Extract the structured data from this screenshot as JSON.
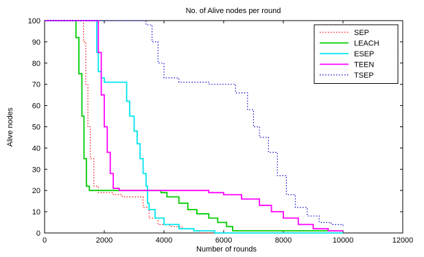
{
  "chart_data": {
    "type": "line",
    "title": "No. of Alive nodes per round",
    "xlabel": "Number of rounds",
    "ylabel": "Alive nodes",
    "xlim": [
      0,
      12000
    ],
    "ylim": [
      0,
      100
    ],
    "xticks": [
      0,
      2000,
      4000,
      6000,
      8000,
      10000,
      12000
    ],
    "yticks": [
      0,
      10,
      20,
      30,
      40,
      50,
      60,
      70,
      80,
      90,
      100
    ],
    "grid": false,
    "legend_position": "top-right",
    "series": [
      {
        "name": "SEP",
        "color": "#ff0000",
        "style": "dotted",
        "x": [
          0,
          1200,
          1300,
          1380,
          1450,
          1530,
          1650,
          1800,
          2000,
          2300,
          2600,
          3000,
          3300,
          3500,
          3800,
          4200,
          4600,
          5000,
          5200,
          5600,
          6000,
          8000,
          10000
        ],
        "y": [
          100,
          100,
          90,
          70,
          50,
          35,
          22,
          19,
          19,
          18,
          17,
          17,
          12,
          7,
          4,
          3,
          2,
          1,
          0,
          0,
          0,
          0,
          0
        ]
      },
      {
        "name": "LEACH",
        "color": "#00cc00",
        "style": "solid",
        "x": [
          0,
          1000,
          1050,
          1150,
          1250,
          1320,
          1400,
          1500,
          1800,
          2500,
          3500,
          3900,
          4100,
          4500,
          4800,
          5100,
          5500,
          5800,
          6100,
          6300,
          8000,
          10000
        ],
        "y": [
          100,
          100,
          92,
          75,
          55,
          35,
          22,
          20,
          20,
          20,
          20,
          19,
          17,
          14,
          11,
          9,
          7,
          5,
          3,
          1,
          1,
          1
        ]
      },
      {
        "name": "ESEP",
        "color": "#00e5ee",
        "style": "solid",
        "x": [
          0,
          1700,
          1750,
          1800,
          1900,
          2000,
          2200,
          2600,
          2750,
          2850,
          3000,
          3100,
          3200,
          3300,
          3400,
          3450,
          3500,
          3700,
          4000,
          4500,
          5000,
          5500,
          5700,
          7000,
          10000
        ],
        "y": [
          100,
          100,
          85,
          76,
          73,
          71,
          71,
          71,
          62,
          55,
          48,
          42,
          35,
          28,
          22,
          14,
          11,
          7,
          4,
          2,
          1,
          1,
          0,
          0,
          0
        ]
      },
      {
        "name": "TEEN",
        "color": "#ff00ff",
        "style": "solid",
        "x": [
          0,
          1700,
          1800,
          1900,
          2000,
          2100,
          2200,
          2300,
          2500,
          3000,
          4000,
          5200,
          5500,
          6000,
          6600,
          7200,
          7600,
          8000,
          8500,
          9000,
          9500,
          10000
        ],
        "y": [
          100,
          100,
          85,
          65,
          50,
          38,
          28,
          21,
          20,
          20,
          20,
          20,
          19,
          18,
          16,
          13,
          10,
          7,
          4,
          2,
          1,
          1
        ]
      },
      {
        "name": "TSEP",
        "color": "#0000cc",
        "style": "dotted",
        "x": [
          0,
          2800,
          3200,
          3400,
          3600,
          3800,
          4000,
          4500,
          5000,
          5500,
          6000,
          6400,
          6800,
          7000,
          7200,
          7500,
          7800,
          8100,
          8400,
          8800,
          9200,
          9600,
          10000
        ],
        "y": [
          100,
          100,
          100,
          98,
          90,
          80,
          73,
          71,
          71,
          70,
          70,
          66,
          58,
          50,
          45,
          38,
          27,
          18,
          12,
          8,
          5,
          4,
          3
        ]
      }
    ]
  }
}
